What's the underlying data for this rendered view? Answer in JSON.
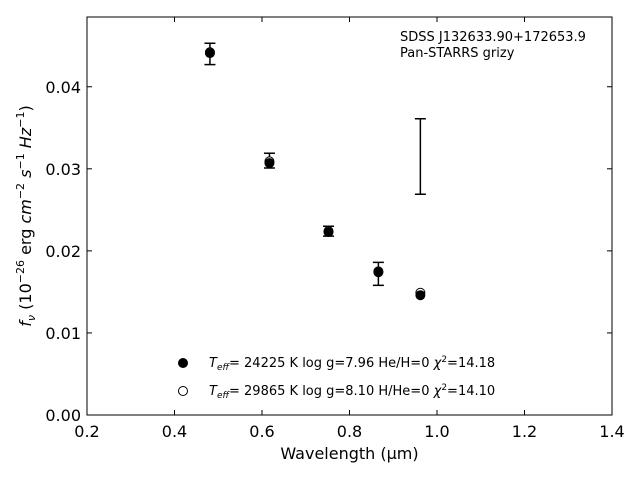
{
  "chart_data": {
    "type": "scatter",
    "xlabel": "Wavelength (μm)",
    "ylabel": "f_ν (10^-26 erg cm^-2 s^-1 Hz^-1)",
    "xlim": [
      0.2,
      1.4
    ],
    "ylim": [
      0.0,
      0.0485
    ],
    "x_ticks": [
      0.2,
      0.4,
      0.6,
      0.8,
      1.0,
      1.2,
      1.4
    ],
    "x_tick_labels": [
      "0.2",
      "0.4",
      "0.6",
      "0.8",
      "1.0",
      "1.2",
      "1.4"
    ],
    "y_ticks": [
      0.0,
      0.01,
      0.02,
      0.03,
      0.04
    ],
    "y_tick_labels": [
      "0.00",
      "0.01",
      "0.02",
      "0.03",
      "0.04"
    ],
    "grid": false,
    "annotations": {
      "object": "SDSS J132633.90+172653.9",
      "survey": "Pan-STARRS grizy"
    },
    "observed": [
      {
        "x": 0.481,
        "y": 0.044,
        "err": 0.0013
      },
      {
        "x": 0.617,
        "y": 0.031,
        "err": 0.0009
      },
      {
        "x": 0.752,
        "y": 0.0224,
        "err": 0.0006
      },
      {
        "x": 0.866,
        "y": 0.0172,
        "err": 0.0014
      },
      {
        "x": 0.962,
        "y": 0.0315,
        "err": 0.0046
      }
    ],
    "series": [
      {
        "marker": "filled-circle",
        "legend": {
          "teff_value": "= 24225 K",
          "logg": "log g=7.96",
          "comp": "He/H=0",
          "chi_value": "=14.18"
        },
        "x": [
          0.481,
          0.617,
          0.752,
          0.866,
          0.962
        ],
        "y": [
          0.0441,
          0.0307,
          0.0223,
          0.0174,
          0.0146
        ]
      },
      {
        "marker": "open-circle",
        "legend": {
          "teff_value": "= 29865 K",
          "logg": "log g=8.10",
          "comp": "H/He=0",
          "chi_value": "=14.10"
        },
        "x": [
          0.481,
          0.617,
          0.752,
          0.866,
          0.962
        ],
        "y": [
          0.0442,
          0.0309,
          0.0224,
          0.0175,
          0.0149
        ]
      }
    ]
  }
}
